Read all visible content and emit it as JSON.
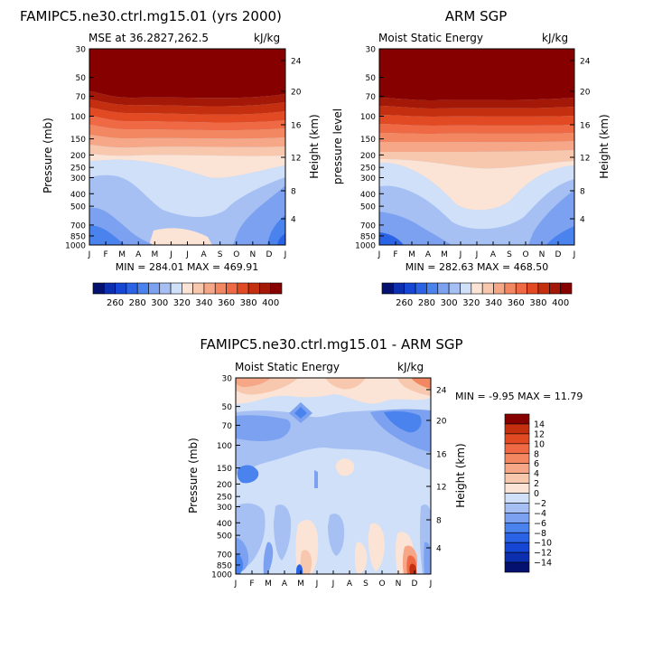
{
  "chart_data": [
    {
      "type": "heatmap",
      "title": "FAMIPC5.ne30.ctrl.mg15.01 (yrs 2000)",
      "left_string": "MSE at 36.2827,262.5",
      "right_string": "kJ/kg",
      "ylabel": "Pressure (mb)",
      "ylabel_right": "Height (km)",
      "x_ticks": [
        "J",
        "F",
        "M",
        "A",
        "M",
        "J",
        "J",
        "A",
        "S",
        "O",
        "N",
        "D",
        "J"
      ],
      "y_ticks": [
        30,
        50,
        70,
        100,
        150,
        200,
        250,
        300,
        400,
        500,
        700,
        850,
        1000
      ],
      "y_ticks_right": [
        24,
        20,
        16,
        12,
        8,
        4
      ],
      "ylim": [
        1000,
        30
      ],
      "stats_text": "MIN = 284.01   MAX = 469.91",
      "min": 284.01,
      "max": 469.91,
      "palette": "full"
    },
    {
      "type": "heatmap",
      "title": "ARM SGP",
      "left_string": "Moist Static Energy",
      "right_string": "kJ/kg",
      "ylabel": "pressure level",
      "ylabel_right": "Height (km)",
      "x_ticks": [
        "J",
        "F",
        "M",
        "A",
        "M",
        "J",
        "J",
        "A",
        "S",
        "O",
        "N",
        "D",
        "J"
      ],
      "y_ticks": [
        30,
        50,
        70,
        100,
        150,
        200,
        250,
        300,
        400,
        500,
        700,
        850,
        1000
      ],
      "y_ticks_right": [
        24,
        20,
        16,
        12,
        8,
        4
      ],
      "ylim": [
        1000,
        30
      ],
      "stats_text": "MIN = 282.63   MAX = 468.50",
      "min": 282.63,
      "max": 468.5,
      "palette": "full"
    },
    {
      "type": "heatmap",
      "title": "FAMIPC5.ne30.ctrl.mg15.01 - ARM SGP",
      "left_string": "Moist Static Energy",
      "right_string": "kJ/kg",
      "ylabel": "Pressure (mb)",
      "ylabel_right": "Height (km)",
      "x_ticks": [
        "J",
        "F",
        "M",
        "A",
        "M",
        "J",
        "J",
        "A",
        "S",
        "O",
        "N",
        "D",
        "J"
      ],
      "y_ticks": [
        30,
        50,
        70,
        100,
        150,
        200,
        250,
        300,
        400,
        500,
        700,
        850,
        1000
      ],
      "y_ticks_right": [
        24,
        20,
        16,
        12,
        8,
        4
      ],
      "ylim": [
        1000,
        30
      ],
      "stats_text": "MIN =   -9.95  MAX =   11.79",
      "min": -9.95,
      "max": 11.79,
      "palette": "diff"
    }
  ],
  "colorbar_full": {
    "colors": [
      "#05116e",
      "#0c2fb0",
      "#1546d4",
      "#2a63e6",
      "#4a82ee",
      "#7ba1f0",
      "#a6c0f3",
      "#cfe0f8",
      "#fbe4d6",
      "#f7c8ae",
      "#f5a787",
      "#f28761",
      "#ef6a44",
      "#e14a22",
      "#c4300f",
      "#a41808",
      "#860000"
    ],
    "labels": [
      "260",
      "280",
      "300",
      "320",
      "340",
      "360",
      "380",
      "400"
    ]
  },
  "colorbar_diff": {
    "colors": [
      "#860000",
      "#c4300f",
      "#e14a22",
      "#ef6a44",
      "#f28761",
      "#f5a787",
      "#f7c8ae",
      "#fbe4d6",
      "#cfe0f8",
      "#a6c0f3",
      "#7ba1f0",
      "#4a82ee",
      "#2a63e6",
      "#1546d4",
      "#0c2fb0",
      "#05116e"
    ],
    "labels": [
      "14",
      "12",
      "10",
      "8",
      "6",
      "4",
      "2",
      "0",
      "−2",
      "−4",
      "−6",
      "−8",
      "−10",
      "−12",
      "−14"
    ]
  }
}
